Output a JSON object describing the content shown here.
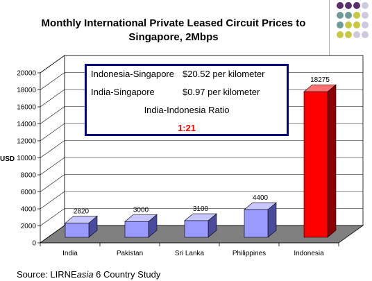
{
  "title_line1": "Monthly International Private Leased Circuit Prices to",
  "title_line2": "Singapore, 2Mbps",
  "info": {
    "row1_label": "Indonesia-Singapore",
    "row1_value": "$20.52 per kilometer",
    "row2_label": "India-Singapore",
    "row2_value": "$0.97 per kilometer",
    "ratio_label": "India-Indonesia Ratio",
    "ratio_value": "1:21"
  },
  "source_prefix": "Source: LIRNE",
  "source_em": "asia",
  "source_suffix": " 6 Country Study",
  "chart_data": {
    "type": "bar",
    "title": "Monthly International Private Leased Circuit Prices to Singapore, 2Mbps",
    "ylabel": "USD",
    "xlabel": "",
    "ylim": [
      0,
      20000
    ],
    "yticks": [
      0,
      2000,
      4000,
      6000,
      8000,
      10000,
      12000,
      14000,
      16000,
      18000,
      20000
    ],
    "categories": [
      "India",
      "Pakistan",
      "Sri Lanka",
      "Philippines",
      "Indonesia"
    ],
    "values": [
      2820,
      3000,
      3100,
      4400,
      18275
    ],
    "data_labels": [
      "2820",
      "3000",
      "3100",
      "4400",
      "18275"
    ],
    "grid": true,
    "colors": {
      "default_front": "#9999ff",
      "default_side": "#4b4b9e",
      "default_top": "#c8c8ff",
      "highlight_front": "#ff0000",
      "highlight_side": "#8b0000",
      "highlight_top": "#ff7070",
      "floor": "#808080"
    }
  },
  "accent_colors": [
    "#5a2d6e",
    "#6e9a9a",
    "#c8c840",
    "#d0c8e0"
  ]
}
